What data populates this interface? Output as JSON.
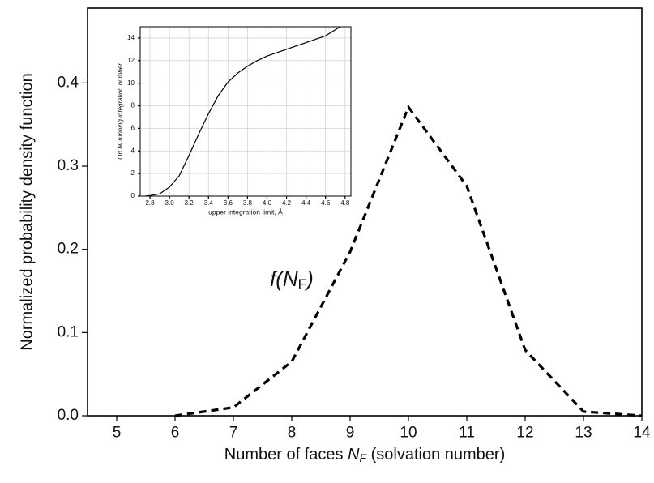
{
  "chart_data": [
    {
      "type": "line",
      "xlabel": [
        "Number of faces ",
        "N",
        "F",
        " (solvation number)"
      ],
      "ylabel": "Normalized probability density function",
      "annotation": [
        "f(N",
        "F",
        ")"
      ],
      "x": [
        6,
        7,
        8,
        9,
        10,
        11,
        12,
        13,
        14
      ],
      "series": [
        {
          "color": "#000000",
          "line_style": "dashed",
          "values": [
            0,
            0.01,
            0.065,
            0.197,
            0.371,
            0.276,
            0.079,
            0.005,
            0
          ]
        }
      ],
      "xlim": [
        4.5,
        14
      ],
      "ylim": [
        0,
        0.49
      ],
      "xticks": [
        5,
        6,
        7,
        8,
        9,
        10,
        11,
        12,
        13,
        14
      ],
      "yticks": [
        {
          "value": 0,
          "label": "0.0"
        },
        0.1,
        0.2,
        0.3,
        0.4
      ],
      "grid": false
    },
    {
      "type": "line",
      "xlabel": [
        "upper integration limit, Å"
      ],
      "ylabel": "OrOw running integration number",
      "x": [
        2.75,
        2.8,
        2.9,
        3.0,
        3.1,
        3.2,
        3.3,
        3.4,
        3.5,
        3.6,
        3.7,
        3.8,
        3.9,
        4.0,
        4.2,
        4.4,
        4.6,
        4.75
      ],
      "series": [
        {
          "color": "#000000",
          "line_style": "solid",
          "values": [
            0,
            0.05,
            0.2,
            0.8,
            1.8,
            3.6,
            5.5,
            7.3,
            8.9,
            10.1,
            10.9,
            11.5,
            12.0,
            12.4,
            13.0,
            13.6,
            14.2,
            15
          ]
        }
      ],
      "xlim": [
        2.7,
        4.86
      ],
      "ylim": [
        0,
        15
      ],
      "xticks": [
        2.8,
        {
          "value": 3,
          "label": "3.0"
        },
        3.2,
        3.4,
        3.6,
        3.8,
        {
          "value": 4,
          "label": "4.0"
        },
        4.2,
        4.4,
        4.6,
        4.8
      ],
      "yticks": [
        0,
        2,
        4,
        6,
        8,
        10,
        12,
        14
      ],
      "grid": true
    }
  ]
}
